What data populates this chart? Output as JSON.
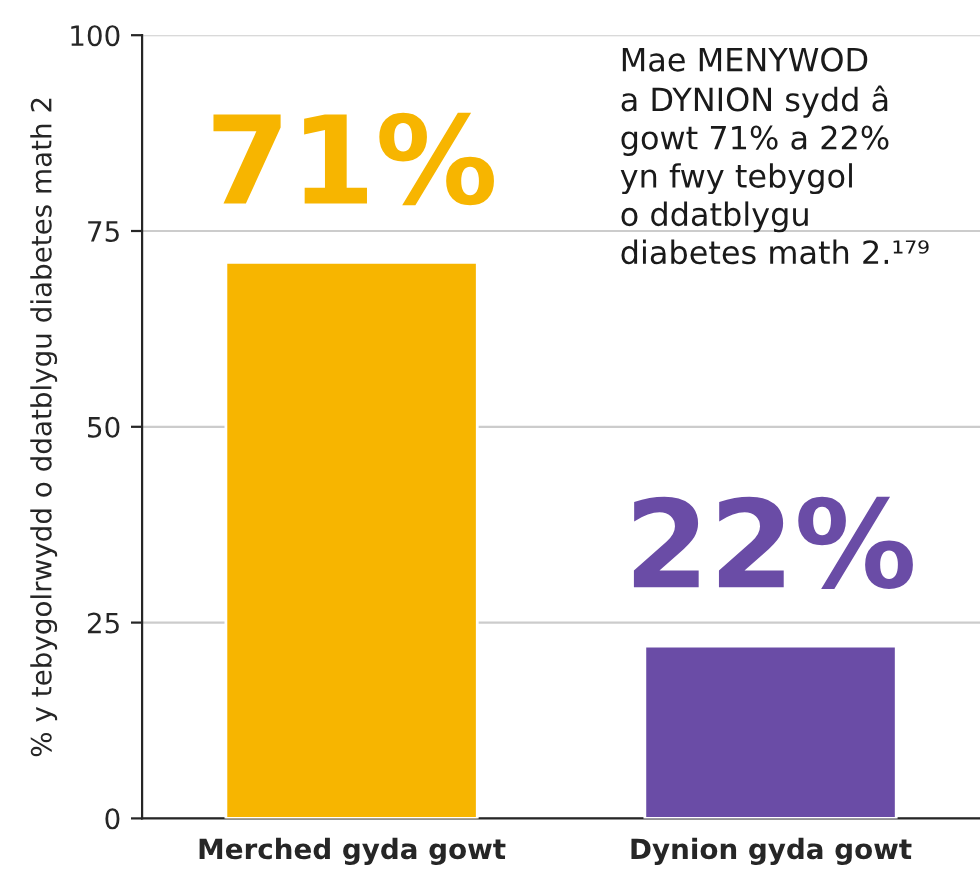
{
  "chart_data": {
    "type": "bar",
    "categories": [
      "Merched gyda gowt",
      "Dynion gyda gowt"
    ],
    "values": [
      71,
      22
    ],
    "colors": [
      "#f7b500",
      "#6a4ca6"
    ],
    "value_labels": [
      "71%",
      "22%"
    ],
    "ylabel": "% y tebygolrwydd o ddatblygu diabetes math 2",
    "ylim": [
      0,
      100
    ],
    "yticks": [
      0,
      25,
      50,
      75,
      100
    ],
    "grid": "y",
    "annotations": [
      "Mae MENYWOD\na DYNION sydd â\ngowt 71% a 22%\nyn fwy tebygol\no ddatblygu\ndiabetes math 2.¹⁷⁹"
    ]
  }
}
